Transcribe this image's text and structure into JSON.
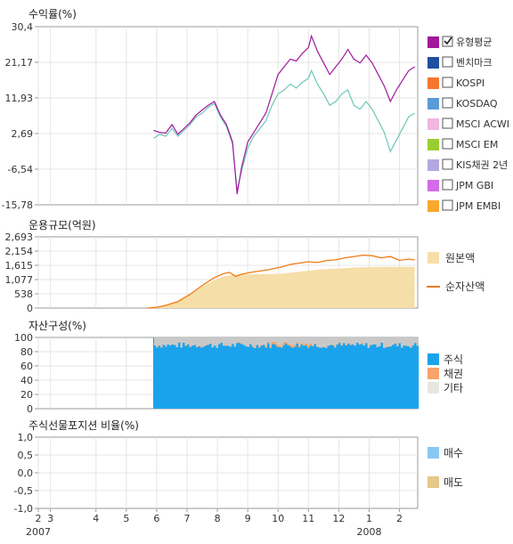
{
  "chart_data": [
    {
      "type": "line",
      "title": "수익률(%)",
      "ylim": [
        -15.78,
        30.4
      ],
      "yticks": [
        "30,4",
        "21,17",
        "11,93",
        "2,69",
        "-6,54",
        "-15,78"
      ],
      "x_domain_months": [
        "2007-02",
        "2008-02"
      ],
      "series": [
        {
          "name": "유형평균",
          "color": "#a0199d",
          "checked": true,
          "values": [
            [
              5.8,
              3.5
            ],
            [
              6.0,
              3.0
            ],
            [
              6.2,
              2.8
            ],
            [
              6.4,
              5.0
            ],
            [
              6.6,
              2.5
            ],
            [
              6.8,
              4.0
            ],
            [
              7.0,
              5.5
            ],
            [
              7.2,
              7.5
            ],
            [
              7.4,
              8.8
            ],
            [
              7.6,
              10.0
            ],
            [
              7.8,
              11.0
            ],
            [
              8.0,
              7.5
            ],
            [
              8.2,
              5.0
            ],
            [
              8.4,
              0.5
            ],
            [
              8.55,
              -13.0
            ],
            [
              8.7,
              -6.0
            ],
            [
              8.9,
              0.5
            ],
            [
              9.1,
              3.0
            ],
            [
              9.3,
              5.5
            ],
            [
              9.5,
              8.0
            ],
            [
              9.7,
              13.0
            ],
            [
              9.9,
              18.0
            ],
            [
              10.1,
              20.0
            ],
            [
              10.3,
              22.0
            ],
            [
              10.5,
              21.5
            ],
            [
              10.7,
              23.5
            ],
            [
              10.9,
              25.0
            ],
            [
              11.0,
              28.0
            ],
            [
              11.2,
              24.0
            ],
            [
              11.4,
              21.0
            ],
            [
              11.6,
              18.0
            ],
            [
              11.8,
              20.0
            ],
            [
              12.0,
              22.0
            ],
            [
              12.2,
              24.5
            ],
            [
              12.4,
              22.0
            ],
            [
              12.6,
              21.0
            ],
            [
              12.8,
              23.0
            ],
            [
              13.0,
              21.0
            ],
            [
              13.2,
              18.0
            ],
            [
              13.4,
              15.0
            ],
            [
              13.6,
              11.0
            ],
            [
              13.8,
              14.0
            ],
            [
              14.0,
              16.5
            ],
            [
              14.2,
              19.0
            ],
            [
              14.4,
              20.0
            ]
          ]
        },
        {
          "name": "벤치마크",
          "color": "#1f4fa0",
          "checked": false
        },
        {
          "name": "KOSPI",
          "color": "#f7762e",
          "checked": false
        },
        {
          "name": "KOSDAQ",
          "color": "#5b9bd8",
          "checked": false
        },
        {
          "name": "MSCI ACWI",
          "color": "#f2b6e0",
          "checked": false
        },
        {
          "name": "MSCI EM",
          "color": "#9acd32",
          "checked": false
        },
        {
          "name": "KIS채권 2년",
          "color": "#b4a7e0",
          "checked": false
        },
        {
          "name": "JPM GBI",
          "color": "#d36be8",
          "checked": false
        },
        {
          "name": "JPM EMBI",
          "color": "#f9a830",
          "checked": false
        }
      ],
      "extra_line_color": "#6cc7b7",
      "extra_line_values": [
        [
          5.8,
          1.5
        ],
        [
          6.0,
          2.5
        ],
        [
          6.2,
          2.0
        ],
        [
          6.4,
          4.0
        ],
        [
          6.6,
          2.0
        ],
        [
          6.8,
          3.5
        ],
        [
          7.0,
          5.0
        ],
        [
          7.2,
          7.0
        ],
        [
          7.4,
          8.0
        ],
        [
          7.6,
          9.5
        ],
        [
          7.8,
          10.5
        ],
        [
          8.0,
          7.0
        ],
        [
          8.2,
          4.5
        ],
        [
          8.4,
          0.0
        ],
        [
          8.55,
          -12.0
        ],
        [
          8.7,
          -7.0
        ],
        [
          8.9,
          -1.0
        ],
        [
          9.1,
          2.0
        ],
        [
          9.3,
          4.0
        ],
        [
          9.5,
          6.0
        ],
        [
          9.7,
          10.0
        ],
        [
          9.9,
          13.0
        ],
        [
          10.1,
          14.0
        ],
        [
          10.3,
          15.5
        ],
        [
          10.5,
          14.5
        ],
        [
          10.7,
          16.0
        ],
        [
          10.9,
          17.0
        ],
        [
          11.0,
          19.0
        ],
        [
          11.2,
          15.5
        ],
        [
          11.4,
          13.0
        ],
        [
          11.6,
          10.0
        ],
        [
          11.8,
          11.0
        ],
        [
          12.0,
          13.0
        ],
        [
          12.2,
          14.0
        ],
        [
          12.4,
          10.0
        ],
        [
          12.6,
          9.0
        ],
        [
          12.8,
          11.0
        ],
        [
          13.0,
          9.0
        ],
        [
          13.2,
          6.0
        ],
        [
          13.4,
          3.0
        ],
        [
          13.6,
          -2.0
        ],
        [
          13.8,
          1.0
        ],
        [
          14.0,
          4.0
        ],
        [
          14.2,
          7.0
        ],
        [
          14.4,
          8.0
        ]
      ]
    },
    {
      "type": "area",
      "title": "운용규모(억원)",
      "ylim": [
        0,
        2693
      ],
      "yticks": [
        "2,693",
        "2,154",
        "1,615",
        "1,077",
        "538",
        "0"
      ],
      "series": [
        {
          "name": "원본액",
          "color": "#f6dea8",
          "type": "area",
          "values": [
            [
              5.6,
              0
            ],
            [
              5.9,
              40
            ],
            [
              6.2,
              100
            ],
            [
              6.6,
              250
            ],
            [
              7.0,
              500
            ],
            [
              7.4,
              800
            ],
            [
              7.8,
              1050
            ],
            [
              8.1,
              1200
            ],
            [
              8.4,
              1250
            ],
            [
              8.8,
              1270
            ],
            [
              9.2,
              1280
            ],
            [
              9.6,
              1290
            ],
            [
              10.0,
              1300
            ],
            [
              10.4,
              1350
            ],
            [
              10.8,
              1400
            ],
            [
              11.2,
              1450
            ],
            [
              11.6,
              1480
            ],
            [
              12.0,
              1500
            ],
            [
              12.4,
              1530
            ],
            [
              12.8,
              1550
            ],
            [
              13.2,
              1560
            ],
            [
              13.6,
              1560
            ],
            [
              14.0,
              1560
            ],
            [
              14.4,
              1560
            ]
          ]
        },
        {
          "name": "순자산액",
          "color": "#f07a10",
          "type": "line",
          "values": [
            [
              5.6,
              0
            ],
            [
              5.9,
              30
            ],
            [
              6.2,
              100
            ],
            [
              6.6,
              250
            ],
            [
              7.0,
              520
            ],
            [
              7.4,
              850
            ],
            [
              7.8,
              1150
            ],
            [
              8.1,
              1300
            ],
            [
              8.3,
              1350
            ],
            [
              8.5,
              1200
            ],
            [
              8.7,
              1280
            ],
            [
              9.0,
              1350
            ],
            [
              9.3,
              1400
            ],
            [
              9.6,
              1450
            ],
            [
              10.0,
              1550
            ],
            [
              10.3,
              1650
            ],
            [
              10.6,
              1700
            ],
            [
              10.9,
              1750
            ],
            [
              11.2,
              1720
            ],
            [
              11.5,
              1800
            ],
            [
              11.8,
              1820
            ],
            [
              12.1,
              1900
            ],
            [
              12.4,
              1950
            ],
            [
              12.7,
              2000
            ],
            [
              13.0,
              1980
            ],
            [
              13.3,
              1900
            ],
            [
              13.6,
              1950
            ],
            [
              13.9,
              1800
            ],
            [
              14.2,
              1850
            ],
            [
              14.4,
              1820
            ]
          ]
        }
      ]
    },
    {
      "type": "bar",
      "title": "자산구성(%)",
      "ylim": [
        0,
        100
      ],
      "yticks": [
        "100",
        "80",
        "60",
        "40",
        "20",
        "0"
      ],
      "x_start_month": 5.8,
      "series": [
        {
          "name": "주식",
          "color": "#1aa3ec",
          "value_range": [
            85,
            93
          ]
        },
        {
          "name": "채권",
          "color": "#f8a36a",
          "value_range": [
            0,
            3
          ]
        },
        {
          "name": "기타",
          "color": "#e8e7df",
          "value_range": [
            5,
            12
          ]
        }
      ]
    },
    {
      "type": "bar",
      "title": "주식선물포지션 비율(%)",
      "ylim": [
        -1,
        1
      ],
      "yticks": [
        "1,0",
        "0,5",
        "0,0",
        "-0,5",
        "-1,0"
      ],
      "series": [
        {
          "name": "매수",
          "color": "#8ac8f4",
          "values": []
        },
        {
          "name": "매도",
          "color": "#e6c88a",
          "values": []
        }
      ]
    }
  ],
  "x_axis": {
    "tick_labels": [
      "2",
      "3",
      "4",
      "5",
      "6",
      "7",
      "8",
      "9",
      "10",
      "11",
      "12",
      "1",
      "2"
    ],
    "tick_months": [
      2.0,
      2.4,
      3.9,
      4.9,
      5.9,
      6.9,
      7.9,
      8.9,
      9.9,
      10.9,
      11.9,
      12.9,
      13.9
    ],
    "year_labels": [
      {
        "label": "2007",
        "month": 2.0
      },
      {
        "label": "2008",
        "month": 12.9
      }
    ]
  },
  "legend_colors": {
    "gain_avg": "#6cc7b7",
    "aum_area": "#f6dea8",
    "aum_line": "#f07a10",
    "stock": "#1aa3ec",
    "bond": "#f8a36a",
    "other": "#e8e7df",
    "buy": "#8ac8f4",
    "sell": "#e6c88a"
  }
}
